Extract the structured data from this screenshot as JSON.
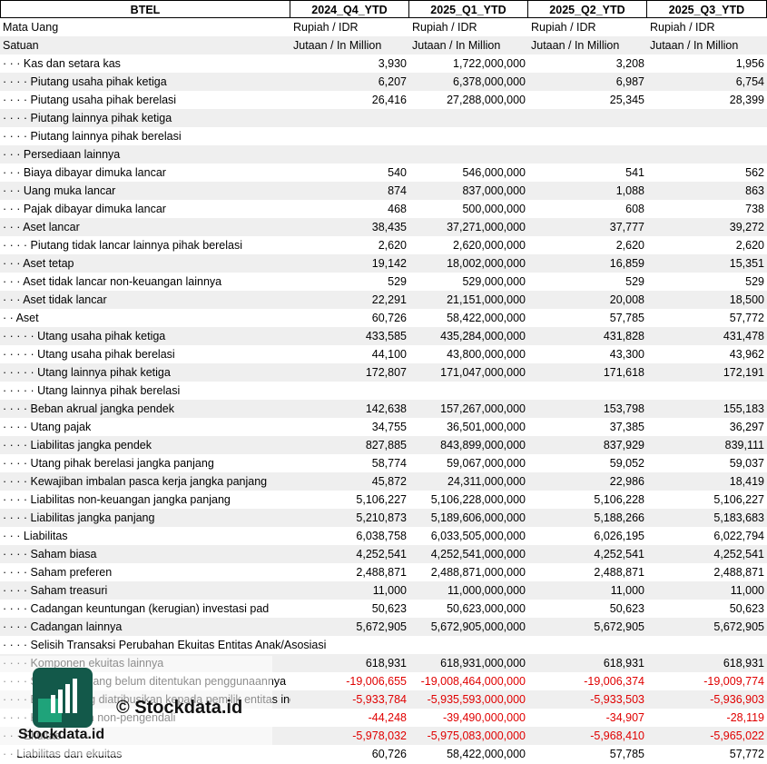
{
  "table": {
    "columns": [
      "BTEL",
      "2024_Q4_YTD",
      "2025_Q1_YTD",
      "2025_Q2_YTD",
      "2025_Q3_YTD"
    ],
    "rows": [
      {
        "label": "Mata Uang",
        "cells": [
          "Rupiah / IDR",
          "Rupiah / IDR",
          "Rupiah / IDR",
          "Rupiah / IDR"
        ]
      },
      {
        "label": "Satuan",
        "cells": [
          "Jutaan / In Million",
          "Jutaan / In Million",
          "Jutaan / In Million",
          "Jutaan / In Million"
        ]
      },
      {
        "label": "· · · Kas dan setara kas",
        "cells": [
          "3,930",
          "1,722,000,000",
          "3,208",
          "1,956"
        ]
      },
      {
        "label": "· · · · Piutang usaha pihak ketiga",
        "cells": [
          "6,207",
          "6,378,000,000",
          "6,987",
          "6,754"
        ]
      },
      {
        "label": "· · · · Piutang usaha pihak berelasi",
        "cells": [
          "26,416",
          "27,288,000,000",
          "25,345",
          "28,399"
        ]
      },
      {
        "label": "· · · · Piutang lainnya pihak ketiga",
        "cells": [
          null,
          null,
          null,
          null
        ]
      },
      {
        "label": "· · · · Piutang lainnya pihak berelasi",
        "cells": [
          null,
          null,
          null,
          null
        ]
      },
      {
        "label": "· · · Persediaan lainnya",
        "cells": [
          null,
          null,
          null,
          null
        ]
      },
      {
        "label": "· · · Biaya dibayar dimuka lancar",
        "cells": [
          "540",
          "546,000,000",
          "541",
          "562"
        ]
      },
      {
        "label": "· · · Uang muka lancar",
        "cells": [
          "874",
          "837,000,000",
          "1,088",
          "863"
        ]
      },
      {
        "label": "· · · Pajak dibayar dimuka lancar",
        "cells": [
          "468",
          "500,000,000",
          "608",
          "738"
        ]
      },
      {
        "label": "· · · Aset lancar",
        "cells": [
          "38,435",
          "37,271,000,000",
          "37,777",
          "39,272"
        ]
      },
      {
        "label": "· · · · Piutang tidak lancar lainnya pihak berelasi",
        "cells": [
          "2,620",
          "2,620,000,000",
          "2,620",
          "2,620"
        ]
      },
      {
        "label": "· · · Aset tetap",
        "cells": [
          "19,142",
          "18,002,000,000",
          "16,859",
          "15,351"
        ]
      },
      {
        "label": "· · · Aset tidak lancar non-keuangan lainnya",
        "cells": [
          "529",
          "529,000,000",
          "529",
          "529"
        ]
      },
      {
        "label": "· · · Aset tidak lancar",
        "cells": [
          "22,291",
          "21,151,000,000",
          "20,008",
          "18,500"
        ]
      },
      {
        "label": "· · Aset",
        "cells": [
          "60,726",
          "58,422,000,000",
          "57,785",
          "57,772"
        ]
      },
      {
        "label": "· · · · · Utang usaha pihak ketiga",
        "cells": [
          "433,585",
          "435,284,000,000",
          "431,828",
          "431,478"
        ]
      },
      {
        "label": "· · · · · Utang usaha pihak berelasi",
        "cells": [
          "44,100",
          "43,800,000,000",
          "43,300",
          "43,962"
        ]
      },
      {
        "label": "· · · · · Utang lainnya pihak ketiga",
        "cells": [
          "172,807",
          "171,047,000,000",
          "171,618",
          "172,191"
        ]
      },
      {
        "label": "· · · · · Utang lainnya pihak berelasi",
        "cells": [
          null,
          null,
          null,
          null
        ]
      },
      {
        "label": "· · · · Beban akrual jangka pendek",
        "cells": [
          "142,638",
          "157,267,000,000",
          "153,798",
          "155,183"
        ]
      },
      {
        "label": "· · · · Utang pajak",
        "cells": [
          "34,755",
          "36,501,000,000",
          "37,385",
          "36,297"
        ]
      },
      {
        "label": "· · · · Liabilitas jangka pendek",
        "cells": [
          "827,885",
          "843,899,000,000",
          "837,929",
          "839,111"
        ]
      },
      {
        "label": "· · · · Utang pihak berelasi jangka panjang",
        "cells": [
          "58,774",
          "59,067,000,000",
          "59,052",
          "59,037"
        ]
      },
      {
        "label": "· · · · Kewajiban imbalan pasca kerja jangka panjang",
        "cells": [
          "45,872",
          "24,311,000,000",
          "22,986",
          "18,419"
        ]
      },
      {
        "label": "· · · · Liabilitas non-keuangan jangka panjang",
        "cells": [
          "5,106,227",
          "5,106,228,000,000",
          "5,106,228",
          "5,106,227"
        ]
      },
      {
        "label": "· · · · Liabilitas jangka panjang",
        "cells": [
          "5,210,873",
          "5,189,606,000,000",
          "5,188,266",
          "5,183,683"
        ]
      },
      {
        "label": "· · · Liabilitas",
        "cells": [
          "6,038,758",
          "6,033,505,000,000",
          "6,026,195",
          "6,022,794"
        ]
      },
      {
        "label": "· · · · Saham biasa",
        "cells": [
          "4,252,541",
          "4,252,541,000,000",
          "4,252,541",
          "4,252,541"
        ]
      },
      {
        "label": "· · · · Saham preferen",
        "cells": [
          "2,488,871",
          "2,488,871,000,000",
          "2,488,871",
          "2,488,871"
        ]
      },
      {
        "label": "· · · · Saham treasuri",
        "cells": [
          "11,000",
          "11,000,000,000",
          "11,000",
          "11,000"
        ]
      },
      {
        "label": "· · · · Cadangan keuntungan (kerugian) investasi pad",
        "cells": [
          "50,623",
          "50,623,000,000",
          "50,623",
          "50,623"
        ]
      },
      {
        "label": "· · · · Cadangan lainnya",
        "cells": [
          "5,672,905",
          "5,672,905,000,000",
          "5,672,905",
          "5,672,905"
        ]
      },
      {
        "label": "· · · · Selisih Transaksi Perubahan Ekuitas Entitas Anak/Asosiasi",
        "cells": [
          null,
          null,
          null,
          null
        ]
      },
      {
        "label": "· · · · Komponen ekuitas lainnya",
        "cells": [
          "618,931",
          "618,931,000,000",
          "618,931",
          "618,931"
        ]
      },
      {
        "label": "· · · · Saldo laba yang belum ditentukan penggunaannya",
        "cells": [
          "-19,006,655",
          "-19,008,464,000,000",
          "-19,006,374",
          "-19,009,774"
        ]
      },
      {
        "label": "· · · · Ekuitas yang diatribusikan kepada pemilik entitas induk",
        "cells": [
          "-5,933,784",
          "-5,935,593,000,000",
          "-5,933,503",
          "-5,936,903"
        ]
      },
      {
        "label": "· · · · Kepentingan non-pengendali",
        "cells": [
          "-44,248",
          "-39,490,000,000",
          "-34,907",
          "-28,119"
        ]
      },
      {
        "label": "· · · Ekuitas",
        "cells": [
          "-5,978,032",
          "-5,975,083,000,000",
          "-5,968,410",
          "-5,965,022"
        ]
      },
      {
        "label": "· · Liabilitas dan ekuitas",
        "cells": [
          "60,726",
          "58,422,000,000",
          "57,785",
          "57,772"
        ]
      }
    ]
  },
  "watermark": {
    "copyright": "© Stockdata.id",
    "brand": "Stockdata.id"
  }
}
